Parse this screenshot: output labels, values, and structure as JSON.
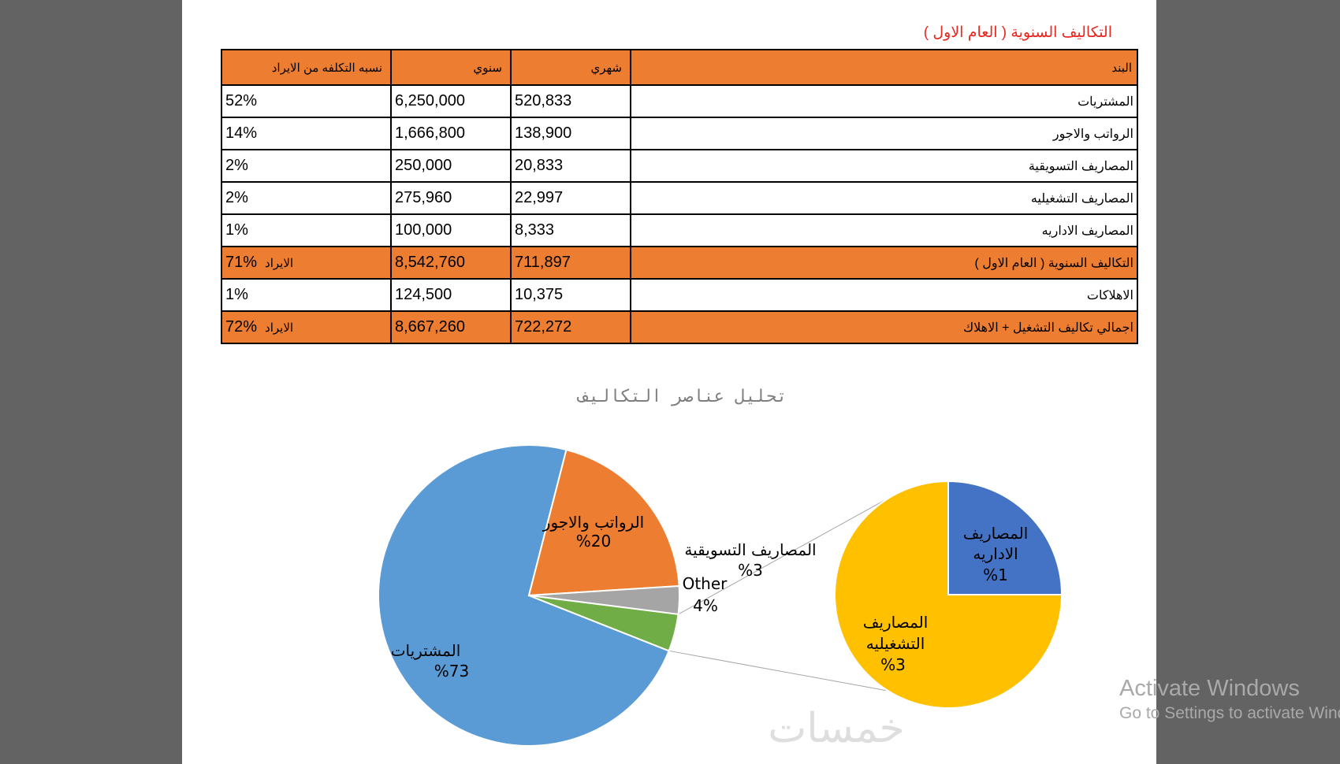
{
  "document": {
    "title": "التكاليف السنوية ( العام الاول )"
  },
  "table": {
    "headers": {
      "item": "البند",
      "monthly": "شهري",
      "annual": "سنوي",
      "ratio": "نسبه التكلفه من الايراد"
    },
    "rows": [
      {
        "item": "المشتريات",
        "monthly": "520,833",
        "annual": "6,250,000",
        "ratio": "52%",
        "suffix": "",
        "highlight": false
      },
      {
        "item": "الرواتب والاجور",
        "monthly": "138,900",
        "annual": "1,666,800",
        "ratio": "14%",
        "suffix": "",
        "highlight": false
      },
      {
        "item": "المصاريف التسويقية",
        "monthly": "20,833",
        "annual": "250,000",
        "ratio": "2%",
        "suffix": "",
        "highlight": false
      },
      {
        "item": "المصاريف التشغيليه",
        "monthly": "22,997",
        "annual": "275,960",
        "ratio": "2%",
        "suffix": "",
        "highlight": false
      },
      {
        "item": "المصاريف الاداريه",
        "monthly": "8,333",
        "annual": "100,000",
        "ratio": "1%",
        "suffix": "",
        "highlight": false
      },
      {
        "item": "التكاليف السنوية ( العام الاول )",
        "monthly": "711,897",
        "annual": "8,542,760",
        "ratio": "71%",
        "suffix": "الايراد",
        "highlight": true
      },
      {
        "item": "الاهلاكات",
        "monthly": "10,375",
        "annual": "124,500",
        "ratio": "1%",
        "suffix": "",
        "highlight": false
      },
      {
        "item": "اجمالي تكاليف التشغيل + الاهلاك",
        "monthly": "722,272",
        "annual": "8,667,260",
        "ratio": "72%",
        "suffix": "الايراد",
        "highlight": true
      }
    ]
  },
  "chart_data": {
    "type": "pie",
    "subtype": "pie-of-pie",
    "title": "تحليل عناصر التكاليف",
    "main_pie": [
      {
        "label": "المشتريات",
        "value_label": "%73",
        "value": 73,
        "color": "#5b9bd5"
      },
      {
        "label": "الرواتب والاجور",
        "value_label": "%20",
        "value": 20,
        "color": "#ed7d31"
      },
      {
        "label": "المصاريف التسويقية",
        "value_label": "%3",
        "value": 3,
        "color": "#a5a5a5"
      },
      {
        "label": "Other",
        "value_label": "4%",
        "value": 4,
        "color": "#70ad47"
      }
    ],
    "secondary_pie": [
      {
        "label_line1": "المصاريف",
        "label_line2": "الاداريه",
        "value_label": "%1",
        "value": 1,
        "color": "#4472c4"
      },
      {
        "label_line1": "المصاريف",
        "label_line2": "التشغيليه",
        "value_label": "%3",
        "value": 3,
        "color": "#ffc000"
      }
    ]
  },
  "watermark": {
    "text": "خمسات"
  },
  "os_overlay": {
    "line1": "Activate Windows",
    "line2": "Go to Settings to activate Windows."
  }
}
